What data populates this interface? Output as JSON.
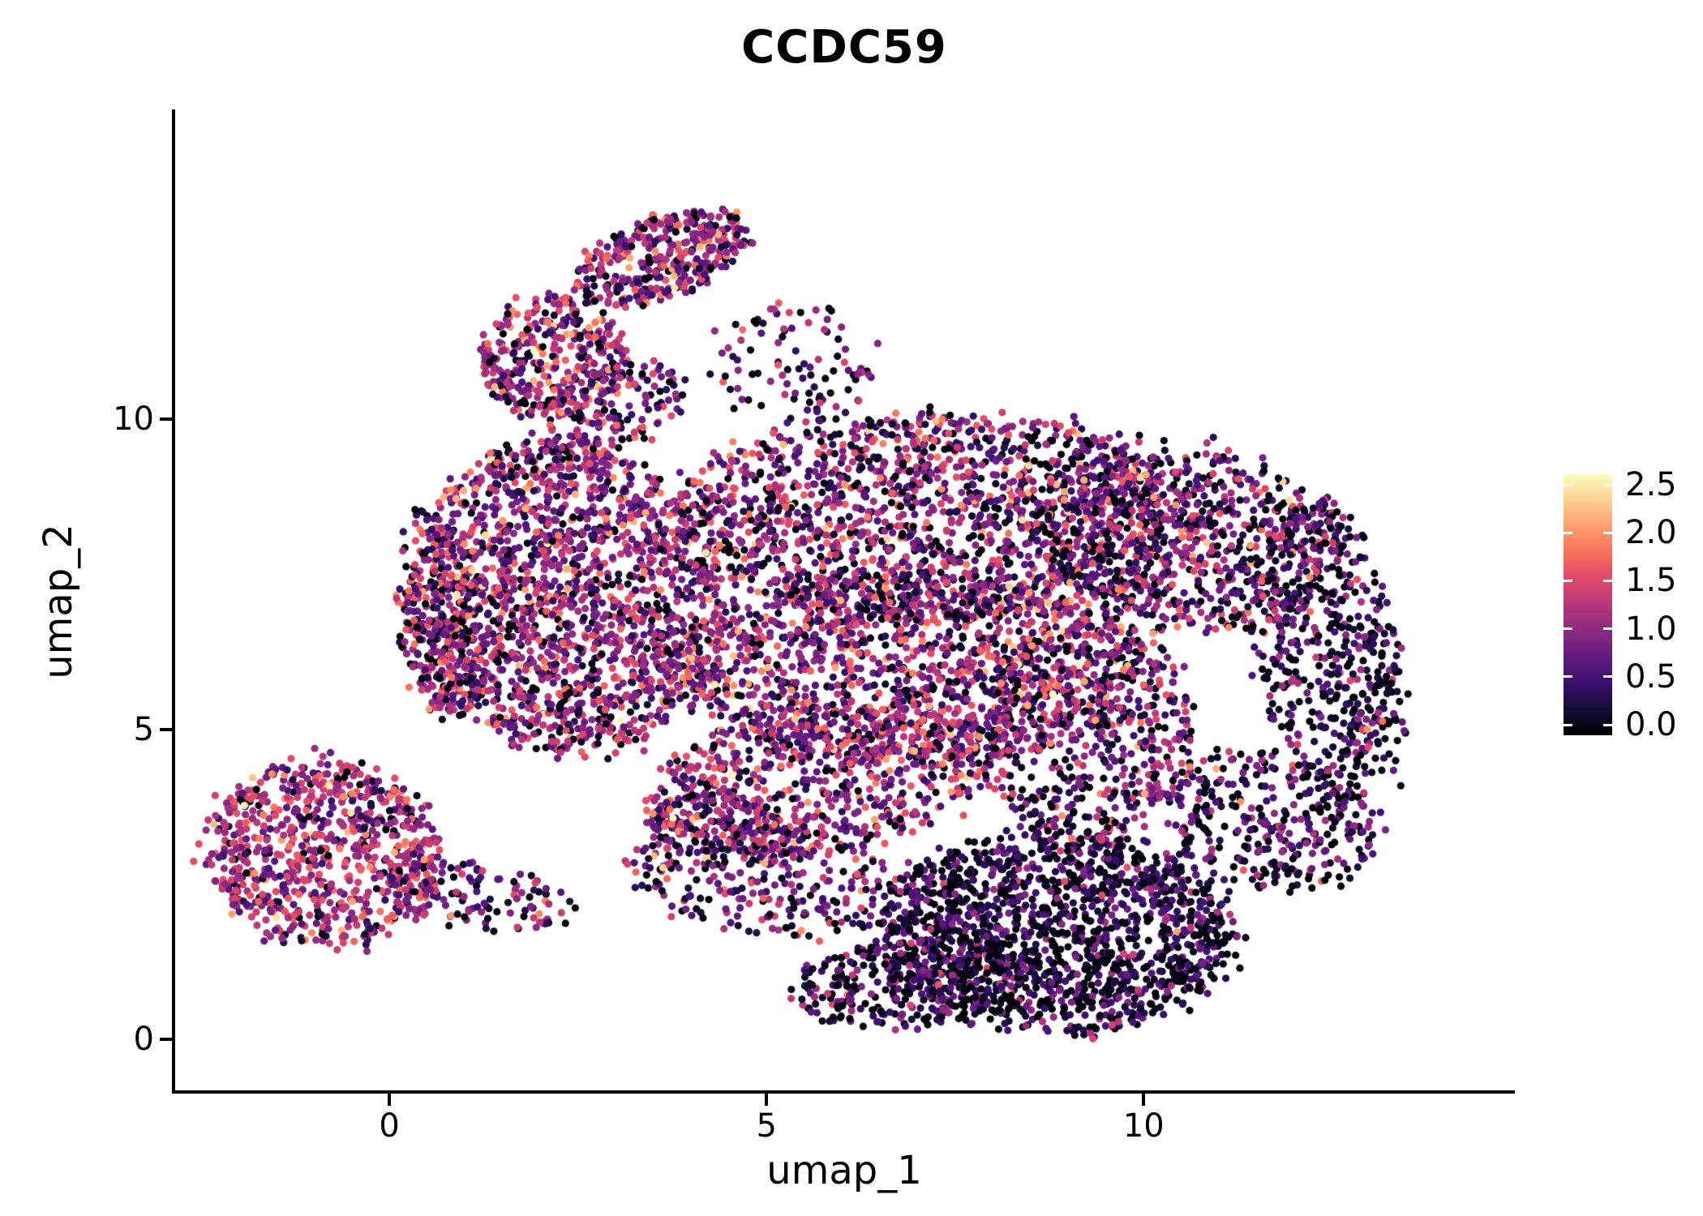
{
  "chart_data": {
    "type": "scatter",
    "title": "CCDC59",
    "xlabel": "umap_1",
    "ylabel": "umap_2",
    "xlim": [
      -2.85,
      14.91
    ],
    "ylim": [
      -0.85,
      15.0
    ],
    "grid": false,
    "xticks": [
      {
        "v": 0,
        "label": "0"
      },
      {
        "v": 5,
        "label": "5"
      },
      {
        "v": 10,
        "label": "10"
      }
    ],
    "yticks": [
      {
        "v": 0,
        "label": "0"
      },
      {
        "v": 5,
        "label": "5"
      },
      {
        "v": 10,
        "label": "10"
      }
    ],
    "point_radius_px": 4.6,
    "colorbar": {
      "position": "right",
      "vmin": 0.0,
      "vmax": 2.5,
      "colormap": "magma",
      "stops": [
        "#000004",
        "#140e36",
        "#3b0f70",
        "#641a80",
        "#8c2981",
        "#b73779",
        "#de4968",
        "#f7705c",
        "#fe9f6d",
        "#fecf92",
        "#fcfdbf"
      ],
      "ticks": [
        {
          "v": 2.5,
          "label": "2.5"
        },
        {
          "v": 2.0,
          "label": "2.0"
        },
        {
          "v": 1.5,
          "label": "1.5"
        },
        {
          "v": 1.0,
          "label": "1.0"
        },
        {
          "v": 0.5,
          "label": "0.5"
        },
        {
          "v": 0.0,
          "label": "0.0"
        }
      ]
    },
    "clusters": [
      {
        "name": "lower-left-cluster",
        "cx": -0.9,
        "cy": 3.0,
        "rx": 1.55,
        "ry": 1.5,
        "rot": -15,
        "n": 800,
        "mean": 1.15,
        "sd": 0.45,
        "low": 0.06
      },
      {
        "name": "lower-left-tail",
        "cx": 1.1,
        "cy": 2.3,
        "rx": 1.3,
        "ry": 0.55,
        "rot": -10,
        "n": 130,
        "mean": 0.9,
        "sd": 0.5,
        "low": 0.15
      },
      {
        "name": "left-blob",
        "cx": 2.3,
        "cy": 7.1,
        "rx": 2.1,
        "ry": 2.5,
        "rot": 10,
        "n": 1800,
        "mean": 1.0,
        "sd": 0.5,
        "low": 0.1
      },
      {
        "name": "left-blob-west-edge",
        "cx": 0.75,
        "cy": 6.6,
        "rx": 0.6,
        "ry": 1.5,
        "rot": 0,
        "n": 220,
        "mean": 0.9,
        "sd": 0.5,
        "low": 0.12
      },
      {
        "name": "upper-arm-lower",
        "cx": 2.2,
        "cy": 11.0,
        "rx": 1.0,
        "ry": 1.0,
        "rot": 0,
        "n": 380,
        "mean": 1.05,
        "sd": 0.5,
        "low": 0.1
      },
      {
        "name": "upper-arm-upper",
        "cx": 3.6,
        "cy": 12.6,
        "rx": 1.25,
        "ry": 0.65,
        "rot": 25,
        "n": 380,
        "mean": 1.05,
        "sd": 0.5,
        "low": 0.1
      },
      {
        "name": "arm-neck",
        "cx": 2.9,
        "cy": 10.1,
        "rx": 1.1,
        "ry": 0.7,
        "rot": 30,
        "n": 170,
        "mean": 0.9,
        "sd": 0.5,
        "low": 0.15
      },
      {
        "name": "top-sparse",
        "cx": 5.4,
        "cy": 10.9,
        "rx": 1.1,
        "ry": 1.0,
        "rot": 0,
        "n": 100,
        "mean": 0.7,
        "sd": 0.5,
        "low": 0.3
      },
      {
        "name": "main-upper-band",
        "cx": 7.3,
        "cy": 8.4,
        "rx": 3.5,
        "ry": 1.7,
        "rot": 0,
        "n": 1700,
        "mean": 0.95,
        "sd": 0.55,
        "low": 0.13
      },
      {
        "name": "main-mid",
        "cx": 6.9,
        "cy": 6.0,
        "rx": 3.1,
        "ry": 1.5,
        "rot": 0,
        "n": 1300,
        "mean": 1.0,
        "sd": 0.55,
        "low": 0.12
      },
      {
        "name": "main-right-upper",
        "cx": 10.6,
        "cy": 8.1,
        "rx": 2.1,
        "ry": 1.5,
        "rot": -15,
        "n": 750,
        "mean": 0.8,
        "sd": 0.55,
        "low": 0.2
      },
      {
        "name": "main-left-low",
        "cx": 5.7,
        "cy": 4.2,
        "rx": 2.3,
        "ry": 1.2,
        "rot": 10,
        "n": 650,
        "mean": 1.0,
        "sd": 0.5,
        "low": 0.12
      },
      {
        "name": "main-center-right",
        "cx": 9.3,
        "cy": 5.0,
        "rx": 1.4,
        "ry": 1.9,
        "rot": 0,
        "n": 550,
        "mean": 0.85,
        "sd": 0.55,
        "low": 0.18
      },
      {
        "name": "right-edge-arc",
        "cx": 12.4,
        "cy": 6.3,
        "rx": 0.95,
        "ry": 2.4,
        "rot": 5,
        "n": 420,
        "mean": 0.55,
        "sd": 0.5,
        "low": 0.3
      },
      {
        "name": "right-outer-sparse",
        "cx": 12.9,
        "cy": 5.0,
        "rx": 0.6,
        "ry": 1.8,
        "rot": 0,
        "n": 80,
        "mean": 0.4,
        "sd": 0.4,
        "low": 0.35
      },
      {
        "name": "right-low-arc",
        "cx": 11.7,
        "cy": 3.5,
        "rx": 1.4,
        "ry": 1.1,
        "rot": -20,
        "n": 320,
        "mean": 0.6,
        "sd": 0.5,
        "low": 0.28
      },
      {
        "name": "lower-right-dense",
        "cx": 8.8,
        "cy": 1.7,
        "rx": 2.4,
        "ry": 1.6,
        "rot": 0,
        "n": 1500,
        "mean": 0.45,
        "sd": 0.42,
        "low": 0.3
      },
      {
        "name": "bottom-tail",
        "cx": 6.9,
        "cy": 0.9,
        "rx": 1.6,
        "ry": 0.7,
        "rot": 5,
        "n": 280,
        "mean": 0.5,
        "sd": 0.45,
        "low": 0.3
      },
      {
        "name": "bottom-bridge",
        "cx": 5.0,
        "cy": 2.6,
        "rx": 1.9,
        "ry": 0.95,
        "rot": -10,
        "n": 300,
        "mean": 0.85,
        "sd": 0.55,
        "low": 0.18
      },
      {
        "name": "mid-gap-sparse",
        "cx": 4.3,
        "cy": 3.4,
        "rx": 1.0,
        "ry": 0.6,
        "rot": 0,
        "n": 120,
        "mean": 0.9,
        "sd": 0.5,
        "low": 0.15
      }
    ]
  }
}
